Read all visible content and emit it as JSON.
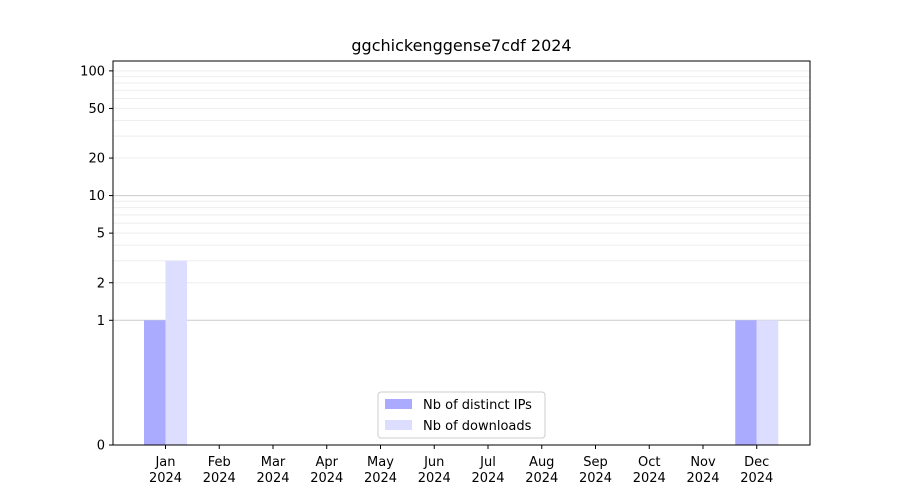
{
  "chart_data": {
    "type": "bar",
    "title": "ggchickenggense7cdf 2024",
    "xlabel": "",
    "ylabel": "",
    "y_scale": "symlog",
    "ylim": [
      0,
      120
    ],
    "yticks": [
      0,
      1,
      2,
      5,
      10,
      20,
      50,
      100
    ],
    "categories": [
      {
        "month": "Jan",
        "year": "2024"
      },
      {
        "month": "Feb",
        "year": "2024"
      },
      {
        "month": "Mar",
        "year": "2024"
      },
      {
        "month": "Apr",
        "year": "2024"
      },
      {
        "month": "May",
        "year": "2024"
      },
      {
        "month": "Jun",
        "year": "2024"
      },
      {
        "month": "Jul",
        "year": "2024"
      },
      {
        "month": "Aug",
        "year": "2024"
      },
      {
        "month": "Sep",
        "year": "2024"
      },
      {
        "month": "Oct",
        "year": "2024"
      },
      {
        "month": "Nov",
        "year": "2024"
      },
      {
        "month": "Dec",
        "year": "2024"
      }
    ],
    "series": [
      {
        "name": "Nb of distinct IPs",
        "color": "#aaaaff",
        "values": [
          1,
          0,
          0,
          0,
          0,
          0,
          0,
          0,
          0,
          0,
          0,
          1
        ]
      },
      {
        "name": "Nb of downloads",
        "color": "#ddddff",
        "values": [
          3,
          0,
          0,
          0,
          0,
          0,
          0,
          0,
          0,
          0,
          0,
          1
        ]
      }
    ],
    "grid": true,
    "legend_position": "lower center"
  }
}
